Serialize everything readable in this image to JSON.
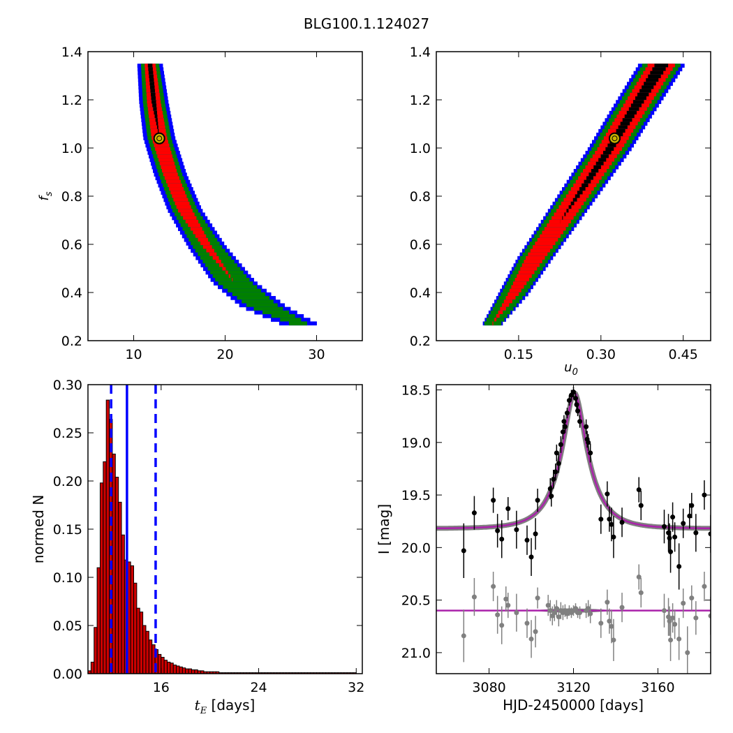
{
  "title": "BLG100.1.124027",
  "colors": {
    "blue": "#0000ff",
    "green": "#008000",
    "red": "#ff0000",
    "black": "#000000",
    "marker": "#c8b400",
    "hist_fill": "#cc0000",
    "model_line": "#aa22aa",
    "model_band": "#808080",
    "secondary_points": "#808080"
  },
  "chart_data": [
    {
      "id": "fs_vs_tE",
      "type": "heatmap",
      "xlim": [
        5,
        35
      ],
      "ylim": [
        0.2,
        1.4
      ],
      "xticks": [
        10,
        20,
        30
      ],
      "xtick_labels": [
        "10",
        "20",
        "30"
      ],
      "yticks": [
        0.2,
        0.4,
        0.6,
        0.8,
        1.0,
        1.2,
        1.4
      ],
      "ytick_labels": [
        "0.2",
        "0.4",
        "0.6",
        "0.8",
        "1.0",
        "1.2",
        "1.4"
      ],
      "xlabel": "",
      "ylabel": "f_s",
      "levels": [
        "blue",
        "green",
        "red",
        "black"
      ],
      "ridge": [
        {
          "fs": 1.35,
          "x": 11.8,
          "w": [
            2.8,
            2.0,
            1.2,
            0.5
          ]
        },
        {
          "fs": 1.2,
          "x": 12.2,
          "w": [
            3.2,
            2.4,
            1.5,
            0.5
          ]
        },
        {
          "fs": 1.05,
          "x": 12.8,
          "w": [
            3.5,
            2.6,
            1.7,
            0.0
          ]
        },
        {
          "fs": 0.9,
          "x": 14.0,
          "w": [
            3.6,
            2.6,
            1.6,
            0.0
          ]
        },
        {
          "fs": 0.75,
          "x": 15.6,
          "w": [
            3.8,
            2.8,
            1.6,
            0.0
          ]
        },
        {
          "fs": 0.6,
          "x": 18.0,
          "w": [
            4.2,
            3.2,
            1.0,
            0.0
          ]
        },
        {
          "fs": 0.45,
          "x": 21.0,
          "w": [
            4.8,
            3.8,
            0.0,
            0.0
          ]
        },
        {
          "fs": 0.35,
          "x": 24.2,
          "w": [
            5.0,
            3.4,
            0.0,
            0.0
          ]
        },
        {
          "fs": 0.27,
          "x": 28.5,
          "w": [
            4.0,
            1.8,
            0.0,
            0.0
          ]
        }
      ],
      "best_fit": {
        "x": 12.8,
        "y": 1.04
      }
    },
    {
      "id": "fs_vs_u0",
      "type": "heatmap",
      "xlim": [
        0.0,
        0.5
      ],
      "ylim": [
        0.2,
        1.4
      ],
      "xticks": [
        0.15,
        0.3,
        0.45
      ],
      "xtick_labels": [
        "0.15",
        "0.30",
        "0.45"
      ],
      "yticks": [
        0.2,
        0.4,
        0.6,
        0.8,
        1.0,
        1.2,
        1.4
      ],
      "ytick_labels": [
        "0.2",
        "0.4",
        "0.6",
        "0.8",
        "1.0",
        "1.2",
        "1.4"
      ],
      "xlabel": "u_0",
      "ylabel": "",
      "levels": [
        "blue",
        "green",
        "red",
        "black"
      ],
      "ridge": [
        {
          "fs": 0.27,
          "x": 0.1,
          "w": [
            0.035,
            0.03,
            0.0,
            0.0
          ]
        },
        {
          "fs": 0.4,
          "x": 0.14,
          "w": [
            0.055,
            0.045,
            0.02,
            0.0
          ]
        },
        {
          "fs": 0.55,
          "x": 0.18,
          "w": [
            0.065,
            0.055,
            0.035,
            0.0
          ]
        },
        {
          "fs": 0.7,
          "x": 0.225,
          "w": [
            0.07,
            0.06,
            0.04,
            0.0
          ]
        },
        {
          "fs": 0.85,
          "x": 0.27,
          "w": [
            0.075,
            0.063,
            0.042,
            0.012
          ]
        },
        {
          "fs": 1.0,
          "x": 0.315,
          "w": [
            0.08,
            0.066,
            0.045,
            0.015
          ]
        },
        {
          "fs": 1.15,
          "x": 0.355,
          "w": [
            0.082,
            0.068,
            0.047,
            0.018
          ]
        },
        {
          "fs": 1.35,
          "x": 0.41,
          "w": [
            0.085,
            0.07,
            0.05,
            0.025
          ]
        }
      ],
      "best_fit": {
        "x": 0.325,
        "y": 1.04
      }
    },
    {
      "id": "tE_histogram",
      "type": "bar",
      "xlim": [
        10,
        32.5
      ],
      "ylim": [
        0,
        0.3
      ],
      "xticks": [
        16,
        24,
        32
      ],
      "xtick_labels": [
        "16",
        "24",
        "32"
      ],
      "yticks": [
        0,
        0.05,
        0.1,
        0.15,
        0.2,
        0.25,
        0.3
      ],
      "ytick_labels": [
        "0.00",
        "0.05",
        "0.10",
        "0.15",
        "0.20",
        "0.25",
        "0.30"
      ],
      "xlabel_math": "t_E",
      "xlabel": "[days]",
      "ylabel": "normed N",
      "bin_start": 10.0,
      "bin_width": 0.25,
      "values": [
        0.003,
        0.012,
        0.048,
        0.11,
        0.198,
        0.22,
        0.284,
        0.264,
        0.228,
        0.204,
        0.178,
        0.144,
        0.118,
        0.116,
        0.112,
        0.094,
        0.068,
        0.064,
        0.05,
        0.044,
        0.035,
        0.03,
        0.025,
        0.02,
        0.017,
        0.014,
        0.012,
        0.011,
        0.009,
        0.008,
        0.007,
        0.006,
        0.005,
        0.005,
        0.004,
        0.004,
        0.003,
        0.003,
        0.002,
        0.002,
        0.002,
        0.002,
        0.002,
        0.001,
        0.001,
        0.001,
        0.001,
        0.001,
        0.001,
        0.001,
        0.001,
        0.001,
        0.001,
        0.001,
        0.001,
        0.001,
        0.001,
        0.001,
        0.001,
        0.001,
        0.001,
        0.001,
        0.001,
        0.001,
        0.001,
        0.001,
        0.001,
        0.001,
        0.001,
        0.001,
        0.001,
        0.001,
        0.001,
        0.001,
        0.001,
        0.001,
        0.001,
        0.001,
        0.001,
        0.001,
        0.001,
        0.001,
        0.001,
        0.001,
        0.001,
        0.001,
        0.001,
        0.001
      ],
      "median": 13.2,
      "interval": [
        11.9,
        15.55
      ]
    },
    {
      "id": "light_curve",
      "type": "scatter",
      "xlim": [
        3055,
        3185
      ],
      "ylim": [
        21.2,
        18.45
      ],
      "xticks": [
        3080,
        3120,
        3160
      ],
      "xtick_labels": [
        "3080",
        "3120",
        "3160"
      ],
      "yticks": [
        18.5,
        19.0,
        19.5,
        20.0,
        20.5,
        21.0
      ],
      "ytick_labels": [
        "18.5",
        "19.0",
        "19.5",
        "20.0",
        "20.5",
        "21.0"
      ],
      "xlabel": "HJD-2450000 [days]",
      "ylabel": "I [mag]",
      "model": {
        "t0": 3120.5,
        "tE": 12.8,
        "u0": 0.325,
        "fs": 1.04,
        "base": 19.82
      },
      "residual_base": 20.6,
      "series": [
        {
          "points": [
            {
              "x": 3068,
              "y": 20.03,
              "e": 0.26
            },
            {
              "x": 3073,
              "y": 19.67,
              "e": 0.16
            },
            {
              "x": 3082,
              "y": 19.55,
              "e": 0.12
            },
            {
              "x": 3084,
              "y": 19.84,
              "e": 0.16
            },
            {
              "x": 3086,
              "y": 19.92,
              "e": 0.18
            },
            {
              "x": 3089,
              "y": 19.63,
              "e": 0.11
            },
            {
              "x": 3093,
              "y": 19.83,
              "e": 0.18
            },
            {
              "x": 3098,
              "y": 19.93,
              "e": 0.14
            },
            {
              "x": 3100,
              "y": 20.09,
              "e": 0.18
            },
            {
              "x": 3102,
              "y": 19.87,
              "e": 0.15
            },
            {
              "x": 3103,
              "y": 19.55,
              "e": 0.11
            },
            {
              "x": 3109,
              "y": 19.44,
              "e": 0.1
            },
            {
              "x": 3109.5,
              "y": 19.51,
              "e": 0.1
            },
            {
              "x": 3110.5,
              "y": 19.35,
              "e": 0.09
            },
            {
              "x": 3111.5,
              "y": 19.28,
              "e": 0.08
            },
            {
              "x": 3112,
              "y": 19.1,
              "e": 0.08
            },
            {
              "x": 3113,
              "y": 19.2,
              "e": 0.09
            },
            {
              "x": 3114,
              "y": 19.02,
              "e": 0.08
            },
            {
              "x": 3115,
              "y": 18.9,
              "e": 0.07
            },
            {
              "x": 3115.5,
              "y": 18.8,
              "e": 0.06
            },
            {
              "x": 3116,
              "y": 18.85,
              "e": 0.06
            },
            {
              "x": 3117,
              "y": 18.72,
              "e": 0.05
            },
            {
              "x": 3118,
              "y": 18.6,
              "e": 0.05
            },
            {
              "x": 3119,
              "y": 18.55,
              "e": 0.05
            },
            {
              "x": 3120,
              "y": 18.52,
              "e": 0.05
            },
            {
              "x": 3121,
              "y": 18.58,
              "e": 0.05
            },
            {
              "x": 3121.5,
              "y": 18.64,
              "e": 0.05
            },
            {
              "x": 3122,
              "y": 18.7,
              "e": 0.05
            },
            {
              "x": 3123,
              "y": 18.8,
              "e": 0.06
            },
            {
              "x": 3126,
              "y": 18.85,
              "e": 0.07
            },
            {
              "x": 3126.5,
              "y": 18.97,
              "e": 0.08
            },
            {
              "x": 3127,
              "y": 19.0,
              "e": 0.08
            },
            {
              "x": 3128,
              "y": 19.1,
              "e": 0.09
            },
            {
              "x": 3133,
              "y": 19.73,
              "e": 0.14
            },
            {
              "x": 3136,
              "y": 19.49,
              "e": 0.12
            },
            {
              "x": 3137,
              "y": 19.73,
              "e": 0.12
            },
            {
              "x": 3138,
              "y": 19.78,
              "e": 0.16
            },
            {
              "x": 3139,
              "y": 19.9,
              "e": 0.2
            },
            {
              "x": 3143,
              "y": 19.76,
              "e": 0.14
            },
            {
              "x": 3151,
              "y": 19.45,
              "e": 0.12
            },
            {
              "x": 3152,
              "y": 19.6,
              "e": 0.14
            },
            {
              "x": 3163,
              "y": 19.8,
              "e": 0.16
            },
            {
              "x": 3165,
              "y": 19.86,
              "e": 0.18
            },
            {
              "x": 3165.5,
              "y": 19.91,
              "e": 0.14
            },
            {
              "x": 3166,
              "y": 20.04,
              "e": 0.2
            },
            {
              "x": 3167,
              "y": 19.71,
              "e": 0.14
            },
            {
              "x": 3168,
              "y": 19.9,
              "e": 0.14
            },
            {
              "x": 3170,
              "y": 20.18,
              "e": 0.22
            },
            {
              "x": 3172,
              "y": 19.77,
              "e": 0.14
            },
            {
              "x": 3175,
              "y": 19.7,
              "e": 0.12
            },
            {
              "x": 3176,
              "y": 19.6,
              "e": 0.12
            },
            {
              "x": 3178,
              "y": 19.86,
              "e": 0.18
            },
            {
              "x": 3182,
              "y": 19.5,
              "e": 0.14
            },
            {
              "x": 3185,
              "y": 19.87,
              "e": 0.18
            }
          ]
        },
        {
          "points": [
            {
              "x": 3068,
              "y": 20.84,
              "e": 0.25
            },
            {
              "x": 3073,
              "y": 20.47,
              "e": 0.18
            },
            {
              "x": 3082,
              "y": 20.37,
              "e": 0.14
            },
            {
              "x": 3084,
              "y": 20.64,
              "e": 0.18
            },
            {
              "x": 3086,
              "y": 20.74,
              "e": 0.18
            },
            {
              "x": 3088,
              "y": 20.49,
              "e": 0.12
            },
            {
              "x": 3089,
              "y": 20.55,
              "e": 0.12
            },
            {
              "x": 3093,
              "y": 20.62,
              "e": 0.18
            },
            {
              "x": 3098,
              "y": 20.72,
              "e": 0.14
            },
            {
              "x": 3100,
              "y": 20.87,
              "e": 0.18
            },
            {
              "x": 3102,
              "y": 20.8,
              "e": 0.15
            },
            {
              "x": 3103,
              "y": 20.48,
              "e": 0.1
            },
            {
              "x": 3108,
              "y": 20.55,
              "e": 0.1
            },
            {
              "x": 3109,
              "y": 20.6,
              "e": 0.1
            },
            {
              "x": 3110,
              "y": 20.65,
              "e": 0.09
            },
            {
              "x": 3111,
              "y": 20.62,
              "e": 0.08
            },
            {
              "x": 3112,
              "y": 20.58,
              "e": 0.08
            },
            {
              "x": 3113,
              "y": 20.66,
              "e": 0.09
            },
            {
              "x": 3114,
              "y": 20.6,
              "e": 0.08
            },
            {
              "x": 3115,
              "y": 20.62,
              "e": 0.07
            },
            {
              "x": 3116,
              "y": 20.6,
              "e": 0.06
            },
            {
              "x": 3117,
              "y": 20.63,
              "e": 0.05
            },
            {
              "x": 3118,
              "y": 20.6,
              "e": 0.05
            },
            {
              "x": 3119,
              "y": 20.62,
              "e": 0.05
            },
            {
              "x": 3120,
              "y": 20.6,
              "e": 0.05
            },
            {
              "x": 3121,
              "y": 20.58,
              "e": 0.05
            },
            {
              "x": 3122,
              "y": 20.62,
              "e": 0.05
            },
            {
              "x": 3123,
              "y": 20.62,
              "e": 0.06
            },
            {
              "x": 3126,
              "y": 20.6,
              "e": 0.07
            },
            {
              "x": 3127,
              "y": 20.58,
              "e": 0.08
            },
            {
              "x": 3128,
              "y": 20.63,
              "e": 0.09
            },
            {
              "x": 3133,
              "y": 20.72,
              "e": 0.14
            },
            {
              "x": 3136,
              "y": 20.52,
              "e": 0.12
            },
            {
              "x": 3137,
              "y": 20.7,
              "e": 0.12
            },
            {
              "x": 3138,
              "y": 20.75,
              "e": 0.16
            },
            {
              "x": 3139,
              "y": 20.88,
              "e": 0.2
            },
            {
              "x": 3143,
              "y": 20.57,
              "e": 0.14
            },
            {
              "x": 3151,
              "y": 20.28,
              "e": 0.12
            },
            {
              "x": 3152,
              "y": 20.43,
              "e": 0.14
            },
            {
              "x": 3163,
              "y": 20.6,
              "e": 0.16
            },
            {
              "x": 3165,
              "y": 20.66,
              "e": 0.18
            },
            {
              "x": 3165.5,
              "y": 20.7,
              "e": 0.14
            },
            {
              "x": 3166,
              "y": 20.88,
              "e": 0.2
            },
            {
              "x": 3167,
              "y": 20.67,
              "e": 0.14
            },
            {
              "x": 3168,
              "y": 20.73,
              "e": 0.14
            },
            {
              "x": 3170,
              "y": 20.87,
              "e": 0.2
            },
            {
              "x": 3172,
              "y": 20.53,
              "e": 0.14
            },
            {
              "x": 3174,
              "y": 21.0,
              "e": 0.25
            },
            {
              "x": 3176,
              "y": 20.48,
              "e": 0.12
            },
            {
              "x": 3178,
              "y": 20.67,
              "e": 0.16
            },
            {
              "x": 3182,
              "y": 20.37,
              "e": 0.14
            },
            {
              "x": 3185,
              "y": 20.65,
              "e": 0.18
            }
          ]
        }
      ]
    }
  ]
}
